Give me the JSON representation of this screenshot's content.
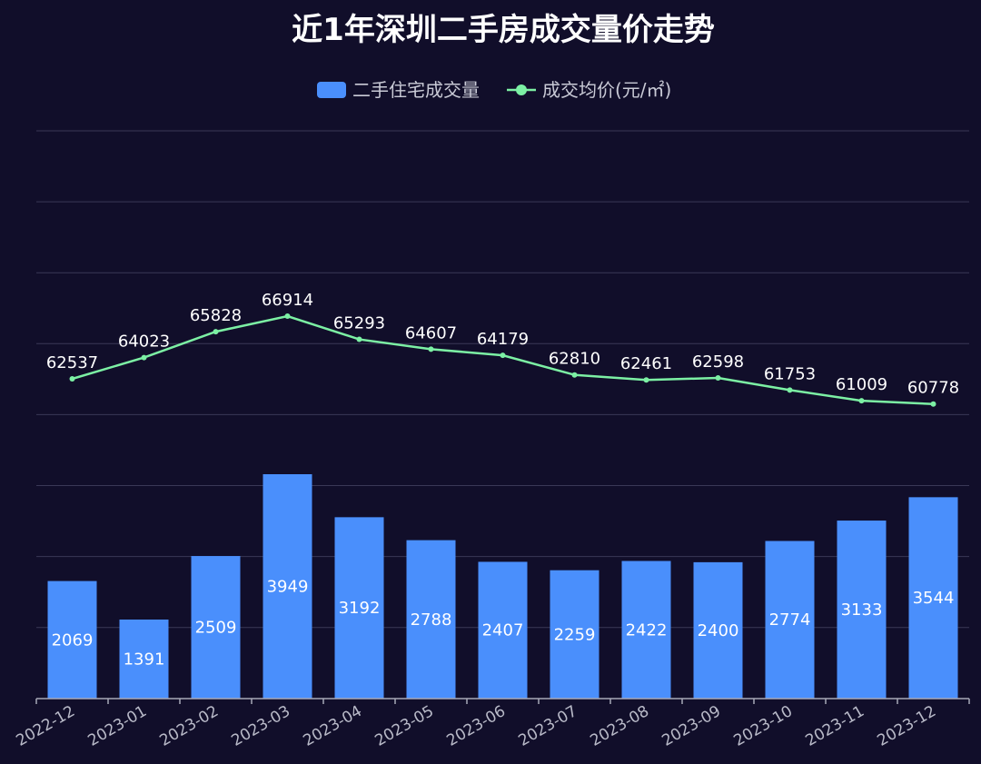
{
  "chart_data": {
    "type": "bar",
    "title": "近1年深圳二手房成交量价走势",
    "legend_position": "top-center",
    "grid": true,
    "categories": [
      "2022-12",
      "2023-01",
      "2023-02",
      "2023-03",
      "2023-04",
      "2023-05",
      "2023-06",
      "2023-07",
      "2023-08",
      "2023-09",
      "2023-10",
      "2023-11",
      "2023-12"
    ],
    "series": [
      {
        "name": "二手住宅成交量",
        "type": "bar",
        "color": "#4a8ffc",
        "values": [
          2069,
          1391,
          2509,
          3949,
          3192,
          2788,
          2407,
          2259,
          2422,
          2400,
          2774,
          3133,
          3544
        ]
      },
      {
        "name": "成交均价(元/㎡)",
        "type": "line",
        "color": "#7cf0a4",
        "values": [
          62537,
          64023,
          65828,
          66914,
          65293,
          64607,
          64179,
          62810,
          62461,
          62598,
          61753,
          61009,
          60778
        ]
      }
    ]
  }
}
